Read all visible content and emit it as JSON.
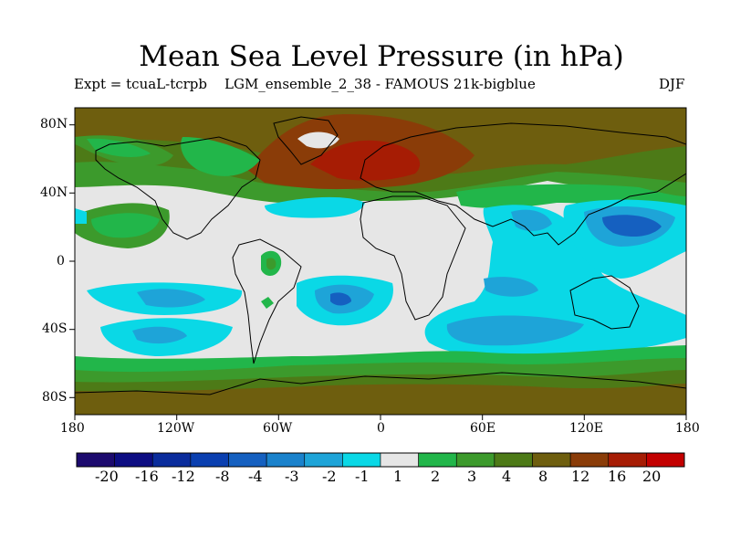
{
  "title": "Mean Sea Level Pressure (in hPa)",
  "experiment_label": "Expt = tcuaL-tcrpb",
  "run_label": "LGM_ensemble_2_38 - FAMOUS 21k-bigblue",
  "season_label": "DJF",
  "chart_data": {
    "type": "heatmap",
    "projection": "equirectangular",
    "variable": "Mean Sea Level Pressure difference",
    "units": "hPa",
    "lon_range": [
      -180,
      180
    ],
    "lat_range": [
      -90,
      90
    ],
    "x_tick_labels": [
      "180",
      "120W",
      "60W",
      "0",
      "60E",
      "120E",
      "180"
    ],
    "x_tick_values": [
      -180,
      -120,
      -60,
      0,
      60,
      120,
      180
    ],
    "y_tick_labels": [
      "80N",
      "40N",
      "0",
      "40S",
      "80S"
    ],
    "y_tick_values": [
      80,
      40,
      0,
      -40,
      -80
    ],
    "colorbar": {
      "labels": [
        "-20",
        "-16",
        "-12",
        "-8",
        "-4",
        "-3",
        "-2",
        "-1",
        "1",
        "2",
        "3",
        "4",
        "8",
        "12",
        "16",
        "20"
      ],
      "colors": [
        "#1c0a6e",
        "#0d0d82",
        "#0a2c9c",
        "#0a3fb0",
        "#1560c0",
        "#1a82cc",
        "#1ea4d8",
        "#0ad8e6",
        "#e6e6e6",
        "#22b64a",
        "#3c9a2c",
        "#4d7a17",
        "#6e5e0e",
        "#8a3c08",
        "#a61c04",
        "#c30000"
      ]
    }
  }
}
